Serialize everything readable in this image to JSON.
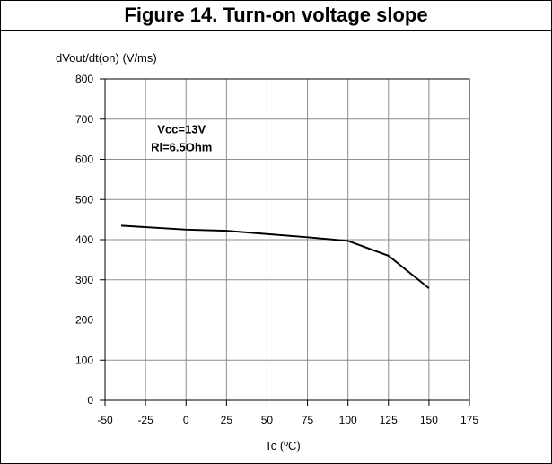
{
  "chart_data": {
    "type": "line",
    "title": "Figure 14. Turn-on voltage slope",
    "ylabel": "dVout/dt(on) (V/ms)",
    "xlabel": "Tc (ºC)",
    "xlim": [
      -50,
      175
    ],
    "ylim": [
      0,
      800
    ],
    "x_ticks": [
      -50,
      -25,
      0,
      25,
      50,
      75,
      100,
      125,
      150,
      175
    ],
    "y_ticks": [
      0,
      100,
      200,
      300,
      400,
      500,
      600,
      700,
      800
    ],
    "x_tick_labels": [
      "-50",
      "-25",
      "0",
      "25",
      "50",
      "75",
      "100",
      "125",
      "150",
      "175"
    ],
    "y_tick_labels": [
      "0",
      "100",
      "200",
      "300",
      "400",
      "500",
      "600",
      "700",
      "800"
    ],
    "grid": true,
    "annotations": [
      "Vcc=13V",
      "Rl=6.5Ohm"
    ],
    "series": [
      {
        "x": [
          -40,
          0,
          25,
          50,
          75,
          100,
          125,
          150
        ],
        "y": [
          435,
          425,
          422,
          414,
          406,
          397,
          360,
          279
        ],
        "color": "#000000"
      }
    ]
  }
}
